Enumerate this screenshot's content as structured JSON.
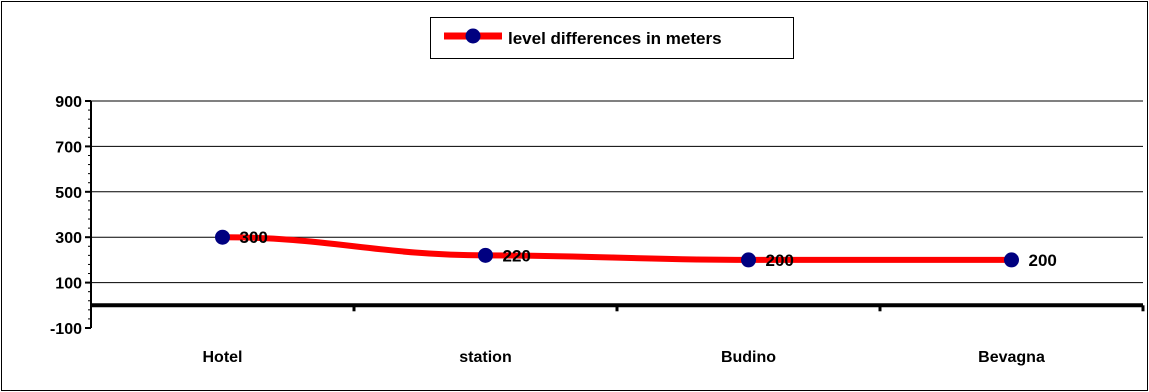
{
  "chart_data": {
    "type": "line",
    "categories": [
      "Hotel",
      "station",
      "Budino",
      "Bevagna"
    ],
    "series": [
      {
        "name": "level differences  in meters",
        "values": [
          300,
          220,
          200,
          200
        ]
      }
    ],
    "data_labels": [
      "300",
      "220",
      "200",
      "200"
    ],
    "yticks": [
      -100,
      100,
      300,
      500,
      700,
      900
    ],
    "ytick_labels": [
      "-100",
      "100",
      "300",
      "500",
      "700",
      "900"
    ],
    "ylim": [
      -100,
      900
    ],
    "grid": true,
    "legend_position": "top-center",
    "colors": {
      "line": "#ff0000",
      "marker": "#000080",
      "grid": "#000000",
      "border": "#000000"
    }
  }
}
